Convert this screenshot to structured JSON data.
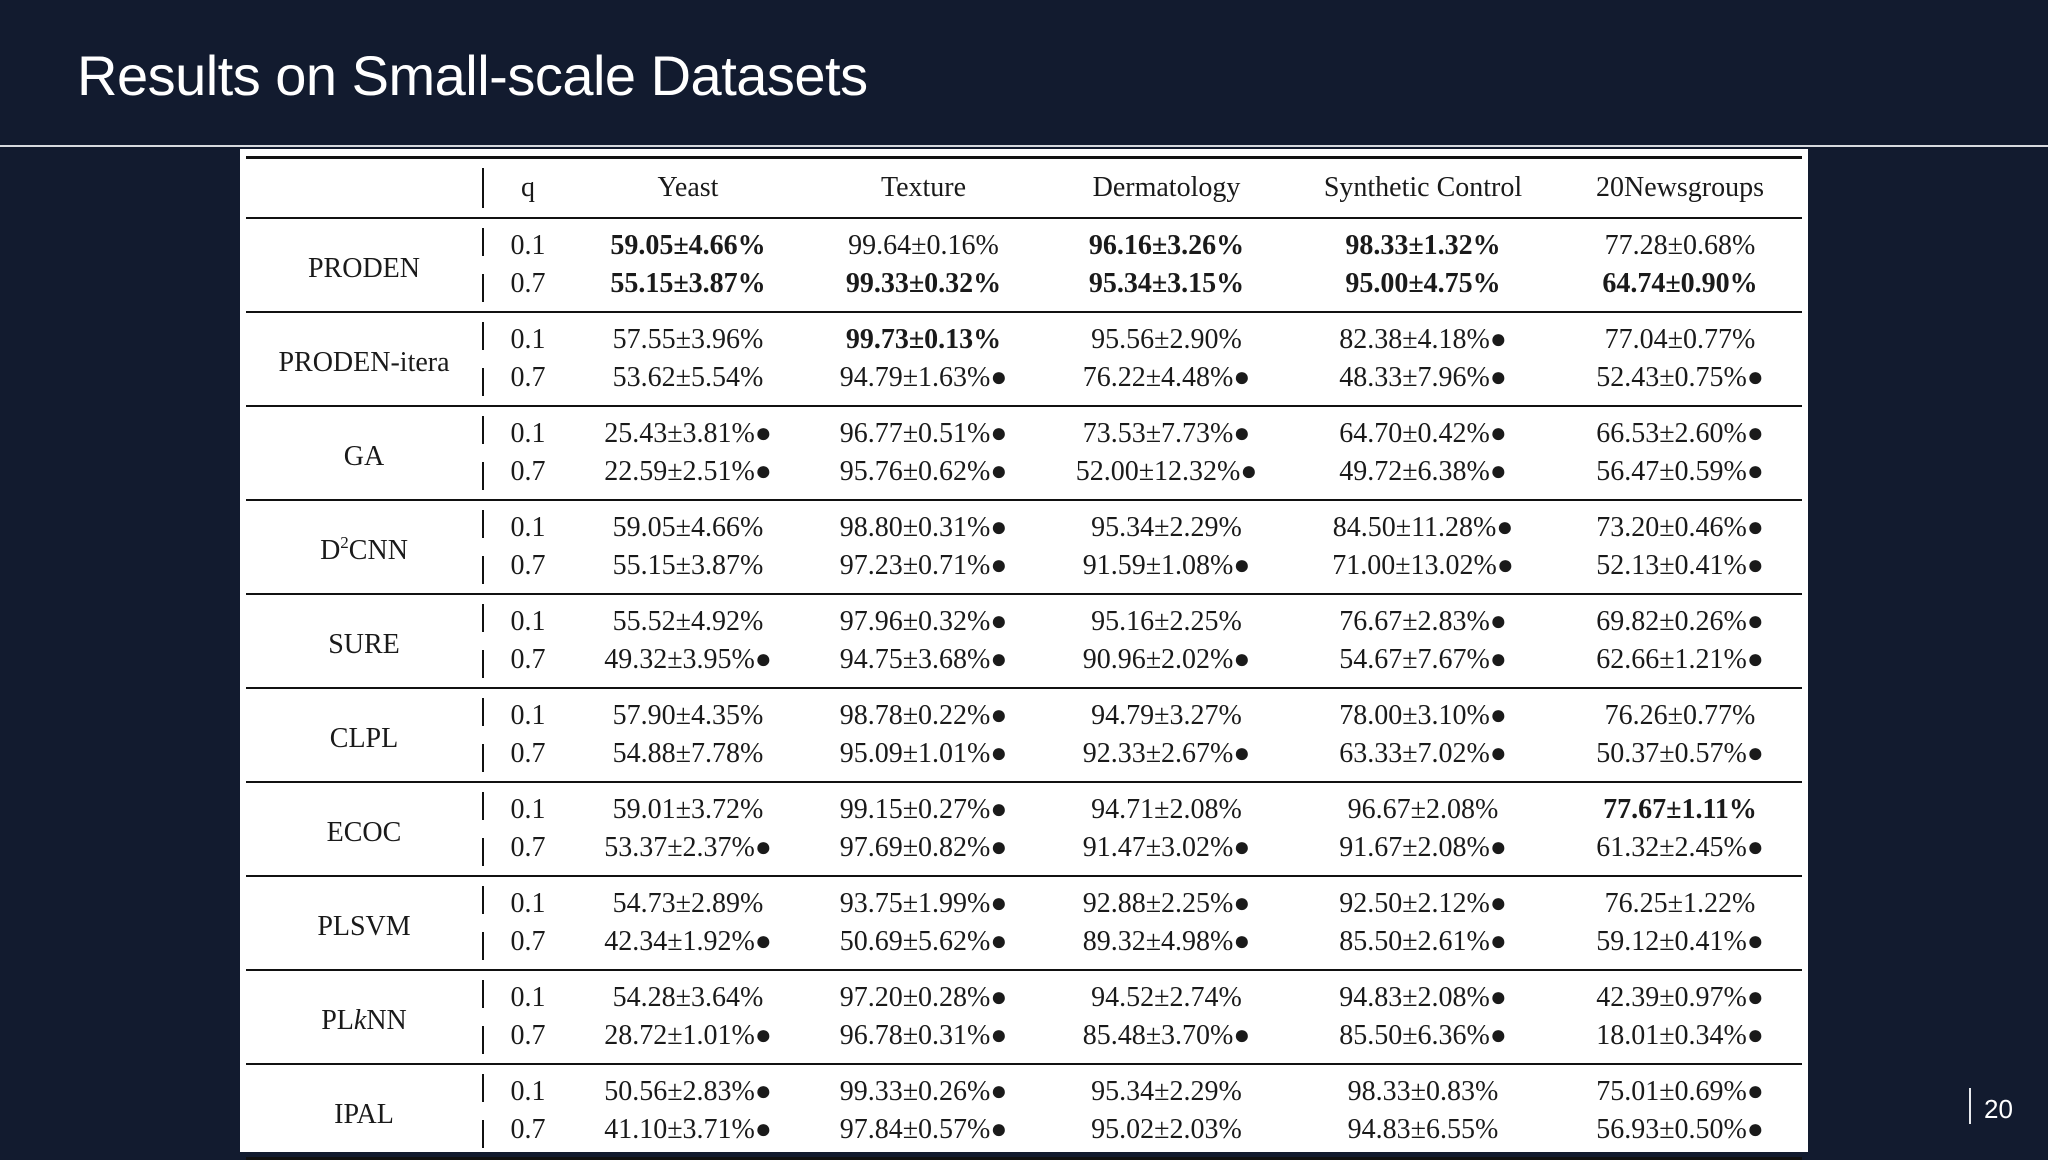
{
  "slide": {
    "title": "Results on Small-scale Datasets",
    "page_number": "20"
  },
  "table": {
    "columns": [
      "q",
      "Yeast",
      "Texture",
      "Dermatology",
      "Synthetic Control",
      "20Newsgroups"
    ],
    "methods": [
      {
        "name": "PRODEN",
        "rows": [
          {
            "q": "0.1",
            "values": [
              "59.05±4.66%",
              "99.64±0.16%",
              "96.16±3.26%",
              "98.33±1.32%",
              "77.28±0.68%"
            ],
            "bold": [
              true,
              false,
              true,
              true,
              false
            ]
          },
          {
            "q": "0.7",
            "values": [
              "55.15±3.87%",
              "99.33±0.32%",
              "95.34±3.15%",
              "95.00±4.75%",
              "64.74±0.90%"
            ],
            "bold": [
              true,
              true,
              true,
              true,
              true
            ]
          }
        ]
      },
      {
        "name": "PRODEN-itera",
        "rows": [
          {
            "q": "0.1",
            "values": [
              "57.55±3.96%",
              "99.73±0.13%",
              "95.56±2.90%",
              "82.38±4.18%●",
              "77.04±0.77%"
            ],
            "bold": [
              false,
              true,
              false,
              false,
              false
            ]
          },
          {
            "q": "0.7",
            "values": [
              "53.62±5.54%",
              "94.79±1.63%●",
              "76.22±4.48%●",
              "48.33±7.96%●",
              "52.43±0.75%●"
            ],
            "bold": [
              false,
              false,
              false,
              false,
              false
            ]
          }
        ]
      },
      {
        "name": "GA",
        "rows": [
          {
            "q": "0.1",
            "values": [
              "25.43±3.81%●",
              "96.77±0.51%●",
              "73.53±7.73%●",
              "64.70±0.42%●",
              "66.53±2.60%●"
            ],
            "bold": [
              false,
              false,
              false,
              false,
              false
            ]
          },
          {
            "q": "0.7",
            "values": [
              "22.59±2.51%●",
              "95.76±0.62%●",
              "52.00±12.32%●",
              "49.72±6.38%●",
              "56.47±0.59%●"
            ],
            "bold": [
              false,
              false,
              false,
              false,
              false
            ]
          }
        ]
      },
      {
        "name_prefix": "D",
        "name_sup": "2",
        "name_suffix": "CNN",
        "rows": [
          {
            "q": "0.1",
            "values": [
              "59.05±4.66%",
              "98.80±0.31%●",
              "95.34±2.29%",
              "84.50±11.28%●",
              "73.20±0.46%●"
            ],
            "bold": [
              false,
              false,
              false,
              false,
              false
            ]
          },
          {
            "q": "0.7",
            "values": [
              "55.15±3.87%",
              "97.23±0.71%●",
              "91.59±1.08%●",
              "71.00±13.02%●",
              "52.13±0.41%●"
            ],
            "bold": [
              false,
              false,
              false,
              false,
              false
            ]
          }
        ]
      },
      {
        "name": "SURE",
        "rows": [
          {
            "q": "0.1",
            "values": [
              "55.52±4.92%",
              "97.96±0.32%●",
              "95.16±2.25%",
              "76.67±2.83%●",
              "69.82±0.26%●"
            ],
            "bold": [
              false,
              false,
              false,
              false,
              false
            ]
          },
          {
            "q": "0.7",
            "values": [
              "49.32±3.95%●",
              "94.75±3.68%●",
              "90.96±2.02%●",
              "54.67±7.67%●",
              "62.66±1.21%●"
            ],
            "bold": [
              false,
              false,
              false,
              false,
              false
            ]
          }
        ]
      },
      {
        "name": "CLPL",
        "rows": [
          {
            "q": "0.1",
            "values": [
              "57.90±4.35%",
              "98.78±0.22%●",
              "94.79±3.27%",
              "78.00±3.10%●",
              "76.26±0.77%"
            ],
            "bold": [
              false,
              false,
              false,
              false,
              false
            ]
          },
          {
            "q": "0.7",
            "values": [
              "54.88±7.78%",
              "95.09±1.01%●",
              "92.33±2.67%●",
              "63.33±7.02%●",
              "50.37±0.57%●"
            ],
            "bold": [
              false,
              false,
              false,
              false,
              false
            ]
          }
        ]
      },
      {
        "name": "ECOC",
        "rows": [
          {
            "q": "0.1",
            "values": [
              "59.01±3.72%",
              "99.15±0.27%●",
              "94.71±2.08%",
              "96.67±2.08%",
              "77.67±1.11%"
            ],
            "bold": [
              false,
              false,
              false,
              false,
              true
            ]
          },
          {
            "q": "0.7",
            "values": [
              "53.37±2.37%●",
              "97.69±0.82%●",
              "91.47±3.02%●",
              "91.67±2.08%●",
              "61.32±2.45%●"
            ],
            "bold": [
              false,
              false,
              false,
              false,
              false
            ]
          }
        ]
      },
      {
        "name": "PLSVM",
        "rows": [
          {
            "q": "0.1",
            "values": [
              "54.73±2.89%",
              "93.75±1.99%●",
              "92.88±2.25%●",
              "92.50±2.12%●",
              "76.25±1.22%"
            ],
            "bold": [
              false,
              false,
              false,
              false,
              false
            ]
          },
          {
            "q": "0.7",
            "values": [
              "42.34±1.92%●",
              "50.69±5.62%●",
              "89.32±4.98%●",
              "85.50±2.61%●",
              "59.12±0.41%●"
            ],
            "bold": [
              false,
              false,
              false,
              false,
              false
            ]
          }
        ]
      },
      {
        "name_prefix": "PL",
        "name_italic": "k",
        "name_suffix": "NN",
        "rows": [
          {
            "q": "0.1",
            "values": [
              "54.28±3.64%",
              "97.20±0.28%●",
              "94.52±2.74%",
              "94.83±2.08%●",
              "42.39±0.97%●"
            ],
            "bold": [
              false,
              false,
              false,
              false,
              false
            ]
          },
          {
            "q": "0.7",
            "values": [
              "28.72±1.01%●",
              "96.78±0.31%●",
              "85.48±3.70%●",
              "85.50±6.36%●",
              "18.01±0.34%●"
            ],
            "bold": [
              false,
              false,
              false,
              false,
              false
            ]
          }
        ]
      },
      {
        "name": "IPAL",
        "rows": [
          {
            "q": "0.1",
            "values": [
              "50.56±2.83%●",
              "99.33±0.26%●",
              "95.34±2.29%",
              "98.33±0.83%",
              "75.01±0.69%●"
            ],
            "bold": [
              false,
              false,
              false,
              false,
              false
            ]
          },
          {
            "q": "0.7",
            "values": [
              "41.10±3.71%●",
              "97.84±0.57%●",
              "95.02±2.03%",
              "94.83±6.55%",
              "56.93±0.50%●"
            ],
            "bold": [
              false,
              false,
              false,
              false,
              false
            ]
          }
        ]
      }
    ]
  }
}
